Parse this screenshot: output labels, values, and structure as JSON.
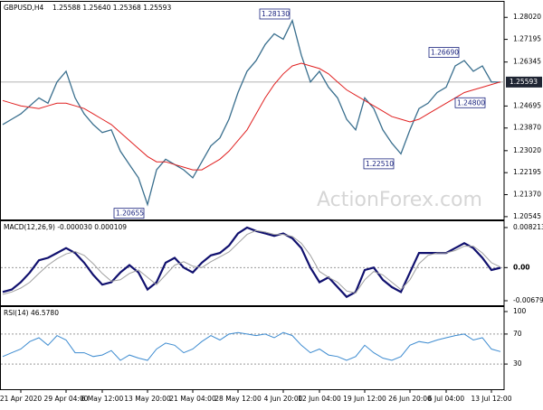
{
  "chart_data": [
    {
      "type": "line",
      "title": "GBPUSD,H4",
      "subtitle": "1.25588 1.25640 1.25368 1.25593",
      "watermark": "ActionForex.com",
      "ylim": [
        1.2044,
        1.2857
      ],
      "yticks": [
        {
          "value": 1.2802,
          "label": "1.28020"
        },
        {
          "value": 1.27195,
          "label": "1.27195"
        },
        {
          "value": 1.26345,
          "label": "1.26345"
        },
        {
          "value": 1.24695,
          "label": "1.24695"
        },
        {
          "value": 1.2387,
          "label": "1.23870"
        },
        {
          "value": 1.2302,
          "label": "1.23020"
        },
        {
          "value": 1.22195,
          "label": "1.22195"
        },
        {
          "value": 1.2137,
          "label": "1.21370"
        },
        {
          "value": 1.20545,
          "label": "1.20545"
        }
      ],
      "current": {
        "value": 1.25593,
        "label": "1.25593"
      },
      "annotations": [
        {
          "value": 1.2813,
          "label": "1.28130"
        },
        {
          "value": 1.2669,
          "label": "1.26690"
        },
        {
          "value": 1.248,
          "label": "1.24800"
        },
        {
          "value": 1.2251,
          "label": "1.22510"
        },
        {
          "value": 1.20655,
          "label": "1.20655"
        }
      ],
      "series": [
        {
          "name": "GBPUSD",
          "color": "#3a6f8e",
          "values": [
            1.24,
            1.242,
            1.244,
            1.247,
            1.25,
            1.248,
            1.256,
            1.26,
            1.25,
            1.244,
            1.24,
            1.237,
            1.238,
            1.23,
            1.225,
            1.22,
            1.21,
            1.223,
            1.227,
            1.225,
            1.223,
            1.22,
            1.226,
            1.232,
            1.235,
            1.242,
            1.252,
            1.26,
            1.264,
            1.27,
            1.274,
            1.272,
            1.279,
            1.266,
            1.256,
            1.26,
            1.254,
            1.25,
            1.242,
            1.238,
            1.25,
            1.246,
            1.238,
            1.233,
            1.229,
            1.238,
            1.246,
            1.248,
            1.252,
            1.254,
            1.262,
            1.264,
            1.26,
            1.262,
            1.256,
            1.2559
          ]
        },
        {
          "name": "MA",
          "color": "#e02020",
          "values": [
            1.249,
            1.248,
            1.247,
            1.2465,
            1.246,
            1.247,
            1.248,
            1.248,
            1.247,
            1.246,
            1.244,
            1.242,
            1.24,
            1.237,
            1.234,
            1.231,
            1.228,
            1.226,
            1.226,
            1.225,
            1.224,
            1.223,
            1.223,
            1.225,
            1.227,
            1.23,
            1.234,
            1.238,
            1.244,
            1.25,
            1.255,
            1.259,
            1.262,
            1.263,
            1.262,
            1.261,
            1.259,
            1.256,
            1.253,
            1.251,
            1.249,
            1.247,
            1.245,
            1.243,
            1.242,
            1.241,
            1.242,
            1.244,
            1.246,
            1.248,
            1.25,
            1.252,
            1.253,
            1.254,
            1.255,
            1.256
          ]
        }
      ]
    },
    {
      "type": "line",
      "title": "MACD(12,26,9) -0.000030 0.000109",
      "ylim": [
        -0.00772,
        0.00932
      ],
      "yticks": [
        0.008213,
        {
          "value": 0,
          "label": "0.00"
        },
        -0.006796
      ],
      "series": [
        {
          "name": "MACD",
          "color": "#10106e",
          "values": [
            -0.005,
            -0.0045,
            -0.003,
            -0.001,
            0.0015,
            0.002,
            0.003,
            0.004,
            0.003,
            0.001,
            -0.0015,
            -0.0035,
            -0.003,
            -0.001,
            0.0005,
            -0.001,
            -0.0045,
            -0.003,
            0.001,
            0.002,
            0,
            -0.001,
            0.001,
            0.0025,
            0.003,
            0.0045,
            0.007,
            0.0082,
            0.0075,
            0.007,
            0.0065,
            0.007,
            0.006,
            0.004,
            0,
            -0.003,
            -0.002,
            -0.004,
            -0.006,
            -0.005,
            -0.0005,
            0,
            -0.0025,
            -0.004,
            -0.005,
            -0.001,
            0.003,
            0.003,
            0.003,
            0.003,
            0.004,
            0.005,
            0.004,
            0.002,
            -0.0005,
            -3e-05
          ]
        },
        {
          "name": "Signal",
          "color": "#a0a0a0",
          "values": [
            -0.0055,
            -0.005,
            -0.0042,
            -0.003,
            -0.0012,
            0.0005,
            0.0018,
            0.0028,
            0.0033,
            0.0025,
            0.0008,
            -0.0012,
            -0.0028,
            -0.0025,
            -0.0012,
            -0.0005,
            -0.002,
            -0.0035,
            -0.0015,
            0.0005,
            0.0012,
            0.0003,
            0,
            0.0012,
            0.0022,
            0.0032,
            0.005,
            0.0068,
            0.0076,
            0.0073,
            0.0068,
            0.0068,
            0.0064,
            0.005,
            0.0025,
            -0.0008,
            -0.002,
            -0.003,
            -0.0048,
            -0.0052,
            -0.0025,
            -0.0008,
            -0.0015,
            -0.003,
            -0.0045,
            -0.0025,
            0.0008,
            0.0025,
            0.003,
            0.003,
            0.0035,
            0.0044,
            0.0044,
            0.003,
            0.001,
            0.000109
          ]
        }
      ]
    },
    {
      "type": "line",
      "title": "RSI(14) 46.5780",
      "ylim": [
        -3.6,
        104.8
      ],
      "yticks": [
        100,
        70,
        30
      ],
      "categories": [
        null,
        null,
        "21 Apr 2020",
        null,
        null,
        null,
        null,
        "29 Apr 04:00",
        null,
        null,
        null,
        "6 May 12:00",
        null,
        null,
        null,
        null,
        "13 May 20:00",
        null,
        null,
        null,
        null,
        "21 May 04:00",
        null,
        null,
        null,
        null,
        "28 May 12:00",
        null,
        null,
        null,
        null,
        "4 Jun 20:00",
        null,
        null,
        null,
        "12 Jun 04:00",
        null,
        null,
        null,
        null,
        "19 Jun 12:00",
        null,
        null,
        null,
        null,
        "26 Jun 20:00",
        null,
        null,
        null,
        "6 Jul 04:00",
        null,
        null,
        null,
        null,
        "13 Jul 12:00",
        null
      ],
      "series": [
        {
          "name": "RSI",
          "color": "#3d8bd0",
          "values": [
            40,
            45,
            50,
            60,
            65,
            55,
            68,
            62,
            45,
            45,
            40,
            42,
            48,
            35,
            42,
            38,
            35,
            50,
            58,
            55,
            45,
            50,
            60,
            68,
            62,
            70,
            72,
            70,
            68,
            70,
            65,
            72,
            68,
            55,
            45,
            50,
            42,
            40,
            35,
            40,
            55,
            45,
            38,
            35,
            40,
            55,
            60,
            58,
            62,
            65,
            68,
            70,
            62,
            65,
            50,
            46.578
          ]
        }
      ]
    }
  ]
}
